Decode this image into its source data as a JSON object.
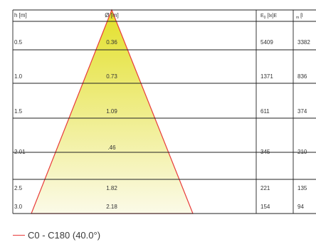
{
  "header": {
    "height_label": "h [m]",
    "diameter_label": "Ø [m]",
    "illuminance_label": "E",
    "illuminance_sub": "0",
    "illuminance_unit": " [lx]E",
    "col5_prefix": "m",
    "col5_unit": " [l"
  },
  "rows": [
    {
      "h": "0.5",
      "d": "0.36",
      "e": "5409",
      "m": "3382"
    },
    {
      "h": "1.0",
      "d": "0.73",
      "e": "1371",
      "m": "836"
    },
    {
      "h": "1.5",
      "d": "1.09",
      "e": "611",
      "m": "374"
    },
    {
      "h": "2.01",
      "d": ".46",
      "e": "345",
      "m": "210"
    },
    {
      "h": "2.5",
      "d": "1.82",
      "e": "221",
      "m": "135"
    },
    {
      "h": "3.0",
      "d": "2.18",
      "e": "154",
      "m": "94"
    }
  ],
  "legend": {
    "label": "C0 - C180 (40.0°)"
  },
  "colors": {
    "beam_outline": "#e83a3a",
    "beam_fill_top": "#e3e02a",
    "beam_fill_bottom": "#fbfae8",
    "grid_lines": "#222222"
  }
}
